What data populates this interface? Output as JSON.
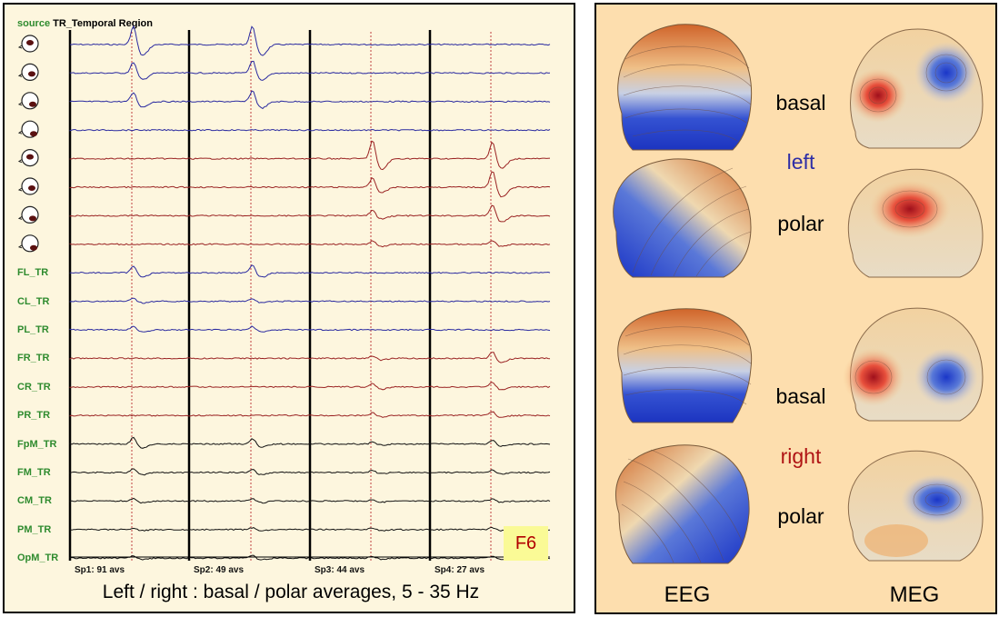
{
  "source": {
    "prefix": "source",
    "name": "TR_Temporal Region"
  },
  "channels": [
    {
      "label": "",
      "icon": "head-source-icon",
      "color": "#2a2aa0",
      "peaks": [
        1.0,
        1.0,
        0.0,
        0.0
      ]
    },
    {
      "label": "",
      "icon": "head-source-icon",
      "color": "#2a2aa0",
      "peaks": [
        0.6,
        0.7,
        0.0,
        0.0
      ]
    },
    {
      "label": "",
      "icon": "head-source-icon",
      "color": "#2a2aa0",
      "peaks": [
        0.5,
        0.6,
        0.0,
        0.0
      ]
    },
    {
      "label": "",
      "icon": "head-source-icon",
      "color": "#2a2aa0",
      "peaks": [
        0.0,
        0.0,
        0.0,
        0.0
      ]
    },
    {
      "label": "",
      "icon": "head-source-icon",
      "color": "#9a2222",
      "peaks": [
        0.0,
        0.0,
        1.0,
        0.9
      ]
    },
    {
      "label": "",
      "icon": "head-source-icon",
      "color": "#9a2222",
      "peaks": [
        0.0,
        0.0,
        0.5,
        0.9
      ]
    },
    {
      "label": "",
      "icon": "head-source-icon",
      "color": "#9a2222",
      "peaks": [
        0.0,
        0.0,
        0.3,
        0.6
      ]
    },
    {
      "label": "",
      "icon": "head-source-icon",
      "color": "#9a2222",
      "peaks": [
        0.0,
        0.0,
        0.2,
        0.2
      ]
    },
    {
      "label": "FL_TR",
      "icon": "",
      "color": "#2a2aa0",
      "peaks": [
        0.35,
        0.4,
        0.0,
        0.0
      ]
    },
    {
      "label": "CL_TR",
      "icon": "",
      "color": "#2a2aa0",
      "peaks": [
        0.15,
        0.15,
        0.0,
        0.0
      ]
    },
    {
      "label": "PL_TR",
      "icon": "",
      "color": "#2a2aa0",
      "peaks": [
        0.2,
        0.2,
        0.0,
        0.0
      ]
    },
    {
      "label": "FR_TR",
      "icon": "",
      "color": "#9a2222",
      "peaks": [
        0.0,
        0.0,
        0.15,
        0.35
      ]
    },
    {
      "label": "CR_TR",
      "icon": "",
      "color": "#9a2222",
      "peaks": [
        0.0,
        0.0,
        0.2,
        0.25
      ]
    },
    {
      "label": "PR_TR",
      "icon": "",
      "color": "#9a2222",
      "peaks": [
        0.0,
        0.0,
        0.15,
        0.2
      ]
    },
    {
      "label": "FpM_TR",
      "icon": "",
      "color": "#111111",
      "peaks": [
        0.35,
        0.3,
        0.1,
        0.2
      ]
    },
    {
      "label": "FM_TR",
      "icon": "",
      "color": "#111111",
      "peaks": [
        0.2,
        0.2,
        0.1,
        0.15
      ]
    },
    {
      "label": "CM_TR",
      "icon": "",
      "color": "#111111",
      "peaks": [
        0.15,
        0.15,
        0.1,
        0.1
      ]
    },
    {
      "label": "PM_TR",
      "icon": "",
      "color": "#111111",
      "peaks": [
        0.1,
        0.1,
        0.1,
        0.1
      ]
    },
    {
      "label": "OpM_TR",
      "icon": "",
      "color": "#111111",
      "peaks": [
        0.15,
        0.15,
        0.1,
        0.1
      ]
    }
  ],
  "segments": [
    "Sp1: 91 avs",
    "Sp2: 49 avs",
    "Sp3: 44 avs",
    "Sp4: 27 avs"
  ],
  "badge": "F6",
  "caption": "Left / right : basal / polar averages,  5 - 35 Hz",
  "right_panel": {
    "row_labels": {
      "basal_top": "basal",
      "left": "left",
      "polar_top": "polar",
      "basal_bottom": "basal",
      "right": "right",
      "polar_bottom": "polar"
    },
    "left_color": "#2e2ea6",
    "right_color": "#b01414",
    "col_eeg": "EEG",
    "col_meg": "MEG"
  }
}
